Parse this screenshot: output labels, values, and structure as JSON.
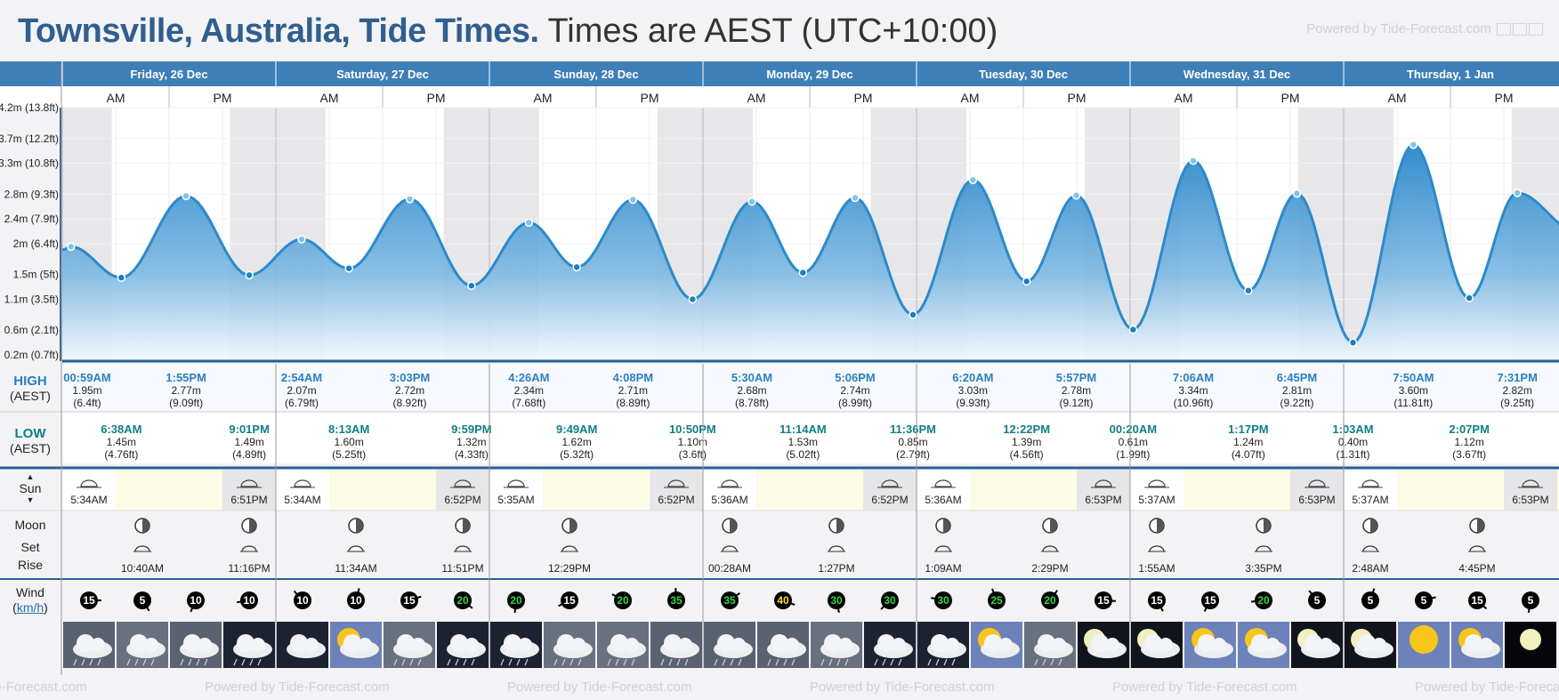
{
  "header": {
    "location": "Townsville, Australia, Tide Times.",
    "timezone": "Times are AEST (UTC+10:00)",
    "powered": "Powered by Tide-Forecast.com"
  },
  "footer": {
    "powered": "Powered by Tide-Forecast.com"
  },
  "labels": {
    "high": "HIGH",
    "high_tz": "(AEST)",
    "low": "LOW",
    "low_tz": "(AEST)",
    "sun": "Sun",
    "moon": "Moon",
    "set": "Set",
    "rise": "Rise",
    "wind": "Wind",
    "wind_unit": "km/h"
  },
  "days": [
    {
      "label": "Friday, 26 Dec",
      "am": "AM",
      "pm": "PM"
    },
    {
      "label": "Saturday, 27 Dec",
      "am": "AM",
      "pm": "PM"
    },
    {
      "label": "Sunday, 28 Dec",
      "am": "AM",
      "pm": "PM"
    },
    {
      "label": "Monday, 29 Dec",
      "am": "AM",
      "pm": "PM"
    },
    {
      "label": "Tuesday, 30 Dec",
      "am": "AM",
      "pm": "PM"
    },
    {
      "label": "Wednesday, 31 Dec",
      "am": "AM",
      "pm": "PM"
    },
    {
      "label": "Thursday, 1 Jan",
      "am": "AM",
      "pm": "PM"
    }
  ],
  "chart_data": {
    "type": "area",
    "title": "",
    "xlabel": "",
    "ylabel": "",
    "ylim": [
      0.1,
      4.2
    ],
    "y_ticks": [
      {
        "value": 0.2,
        "label": "0.2m (0.7ft)"
      },
      {
        "value": 0.6,
        "label": "0.6m (2.1ft)"
      },
      {
        "value": 1.1,
        "label": "1.1m (3.5ft)"
      },
      {
        "value": 1.5,
        "label": "1.5m (5ft)"
      },
      {
        "value": 2.0,
        "label": "2m (6.4ft)"
      },
      {
        "value": 2.4,
        "label": "2.4m (7.9ft)"
      },
      {
        "value": 2.8,
        "label": "2.8m (9.3ft)"
      },
      {
        "value": 3.3,
        "label": "3.3m (10.8ft)"
      },
      {
        "value": 3.7,
        "label": "3.7m (12.2ft)"
      },
      {
        "value": 4.2,
        "label": "4.2m (13.8ft)"
      }
    ],
    "series": [
      {
        "name": "",
        "points": [
          {
            "day": 0,
            "time": "00:59AM",
            "height": 1.95,
            "m": "1.95m",
            "ft": "(6.4ft)",
            "type": "high"
          },
          {
            "day": 0,
            "time": "6:38AM",
            "height": 1.45,
            "m": "1.45m",
            "ft": "(4.76ft)",
            "type": "low"
          },
          {
            "day": 0,
            "time": "1:55PM",
            "height": 2.77,
            "m": "2.77m",
            "ft": "(9.09ft)",
            "type": "high"
          },
          {
            "day": 0,
            "time": "9:01PM",
            "height": 1.49,
            "m": "1.49m",
            "ft": "(4.89ft)",
            "type": "low"
          },
          {
            "day": 1,
            "time": "2:54AM",
            "height": 2.07,
            "m": "2.07m",
            "ft": "(6.79ft)",
            "type": "high"
          },
          {
            "day": 1,
            "time": "8:13AM",
            "height": 1.6,
            "m": "1.60m",
            "ft": "(5.25ft)",
            "type": "low"
          },
          {
            "day": 1,
            "time": "3:03PM",
            "height": 2.72,
            "m": "2.72m",
            "ft": "(8.92ft)",
            "type": "high"
          },
          {
            "day": 1,
            "time": "9:59PM",
            "height": 1.32,
            "m": "1.32m",
            "ft": "(4.33ft)",
            "type": "low"
          },
          {
            "day": 2,
            "time": "4:26AM",
            "height": 2.34,
            "m": "2.34m",
            "ft": "(7.68ft)",
            "type": "high"
          },
          {
            "day": 2,
            "time": "9:49AM",
            "height": 1.62,
            "m": "1.62m",
            "ft": "(5.32ft)",
            "type": "low"
          },
          {
            "day": 2,
            "time": "4:08PM",
            "height": 2.71,
            "m": "2.71m",
            "ft": "(8.89ft)",
            "type": "high"
          },
          {
            "day": 2,
            "time": "10:50PM",
            "height": 1.1,
            "m": "1.10m",
            "ft": "(3.6ft)",
            "type": "low"
          },
          {
            "day": 3,
            "time": "5:30AM",
            "height": 2.68,
            "m": "2.68m",
            "ft": "(8.78ft)",
            "type": "high"
          },
          {
            "day": 3,
            "time": "11:14AM",
            "height": 1.53,
            "m": "1.53m",
            "ft": "(5.02ft)",
            "type": "low"
          },
          {
            "day": 3,
            "time": "5:06PM",
            "height": 2.74,
            "m": "2.74m",
            "ft": "(8.99ft)",
            "type": "high"
          },
          {
            "day": 3,
            "time": "11:36PM",
            "height": 0.85,
            "m": "0.85m",
            "ft": "(2.79ft)",
            "type": "low"
          },
          {
            "day": 4,
            "time": "6:20AM",
            "height": 3.03,
            "m": "3.03m",
            "ft": "(9.93ft)",
            "type": "high"
          },
          {
            "day": 4,
            "time": "12:22PM",
            "height": 1.39,
            "m": "1.39m",
            "ft": "(4.56ft)",
            "type": "low"
          },
          {
            "day": 4,
            "time": "5:57PM",
            "height": 2.78,
            "m": "2.78m",
            "ft": "(9.12ft)",
            "type": "high"
          },
          {
            "day": 5,
            "time": "00:20AM",
            "height": 0.61,
            "m": "0.61m",
            "ft": "(1.99ft)",
            "type": "low"
          },
          {
            "day": 5,
            "time": "7:06AM",
            "height": 3.34,
            "m": "3.34m",
            "ft": "(10.96ft)",
            "type": "high"
          },
          {
            "day": 5,
            "time": "1:17PM",
            "height": 1.24,
            "m": "1.24m",
            "ft": "(4.07ft)",
            "type": "low"
          },
          {
            "day": 5,
            "time": "6:45PM",
            "height": 2.81,
            "m": "2.81m",
            "ft": "(9.22ft)",
            "type": "high"
          },
          {
            "day": 6,
            "time": "1:03AM",
            "height": 0.4,
            "m": "0.40m",
            "ft": "(1.31ft)",
            "type": "low"
          },
          {
            "day": 6,
            "time": "7:50AM",
            "height": 3.6,
            "m": "3.60m",
            "ft": "(11.81ft)",
            "type": "high"
          },
          {
            "day": 6,
            "time": "2:07PM",
            "height": 1.12,
            "m": "1.12m",
            "ft": "(3.67ft)",
            "type": "low"
          },
          {
            "day": 6,
            "time": "7:31PM",
            "height": 2.82,
            "m": "2.82m",
            "ft": "(9.25ft)",
            "type": "high"
          }
        ]
      }
    ],
    "sun": [
      {
        "day": 0,
        "rise": "5:34AM",
        "set": "6:51PM"
      },
      {
        "day": 1,
        "rise": "5:34AM",
        "set": "6:52PM"
      },
      {
        "day": 2,
        "rise": "5:35AM",
        "set": "6:52PM"
      },
      {
        "day": 3,
        "rise": "5:36AM",
        "set": "6:52PM"
      },
      {
        "day": 4,
        "rise": "5:36AM",
        "set": "6:53PM"
      },
      {
        "day": 5,
        "rise": "5:37AM",
        "set": "6:53PM"
      },
      {
        "day": 6,
        "rise": "5:37AM",
        "set": "6:53PM"
      }
    ],
    "moon": [
      {
        "day": 0,
        "set": "10:40AM",
        "rise": "11:16PM"
      },
      {
        "day": 1,
        "set": "11:34AM",
        "rise": "11:51PM"
      },
      {
        "day": 2,
        "set": "12:29PM",
        "rise": ""
      },
      {
        "day": 3,
        "rise": "00:28AM",
        "set": "1:27PM"
      },
      {
        "day": 4,
        "rise": "1:09AM",
        "set": "2:29PM"
      },
      {
        "day": 5,
        "rise": "1:55AM",
        "set": "3:35PM"
      },
      {
        "day": 6,
        "rise": "2:48AM",
        "set": "4:45PM"
      }
    ],
    "wind": [
      15,
      5,
      10,
      10,
      10,
      10,
      15,
      20,
      20,
      15,
      20,
      35,
      35,
      40,
      30,
      30,
      30,
      25,
      20,
      15,
      15,
      15,
      20,
      5,
      5,
      5,
      15,
      5
    ],
    "weather": [
      "storm-rain",
      "rain",
      "storm-rain",
      "night-rain",
      "night-cloud",
      "sun-cloud",
      "rain",
      "night-rain",
      "night-rain",
      "rain",
      "rain",
      "storm-rain",
      "storm-rain",
      "storm-rain",
      "rain",
      "night-rain",
      "night-rain",
      "sun-cloud",
      "rain",
      "moon-cloud",
      "moon-cloud",
      "sun-cloud",
      "sun-cloud",
      "moon-cloud",
      "moon-cloud",
      "sun",
      "sun-cloud",
      "moon"
    ]
  },
  "colors": {
    "header_blue": "#3f7fb7",
    "tide_line": "#2b8acb",
    "high_text": "#2b7fbf",
    "low_text": "#117f84",
    "sun_row": "#fbfbe6"
  }
}
